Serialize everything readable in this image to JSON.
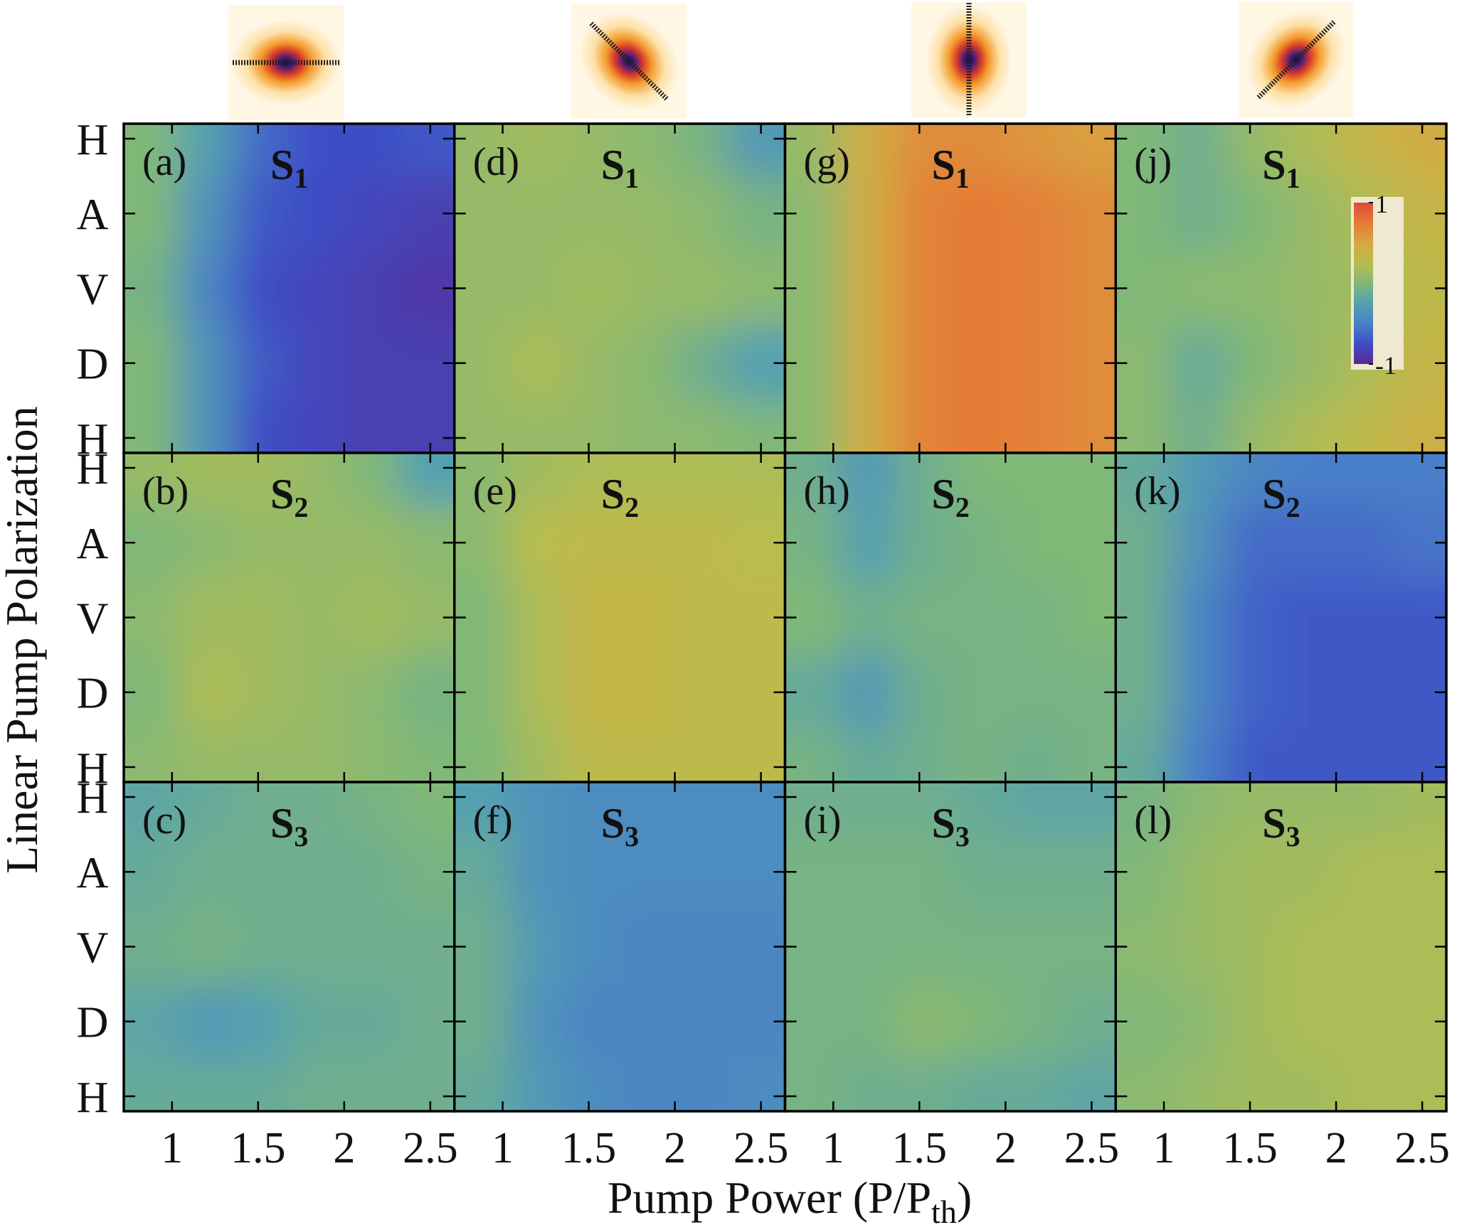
{
  "figure": {
    "ylabel": "Linear Pump Polarization",
    "xlabel": {
      "main": "Pump Power (P/P",
      "sub": "th",
      "end": ")"
    },
    "colorbar": {
      "clim": [
        -1,
        1
      ],
      "ticks": [
        1,
        -1
      ],
      "colors": [
        "#5a2a92",
        "#3e4ec6",
        "#4a7fc8",
        "#55a0b0",
        "#80b878",
        "#b8bd4e",
        "#d6a842",
        "#e57a36",
        "#de4a3a"
      ]
    }
  },
  "chart_data": [
    {
      "type": "heatmap",
      "panel_label": "(a)",
      "title": {
        "symbol": "S",
        "index": "1"
      },
      "x": [
        0.88,
        1.2,
        1.52,
        1.84,
        2.16,
        2.48
      ],
      "y": [
        0,
        1,
        2,
        3,
        4
      ],
      "z": [
        [
          0.0,
          -0.35,
          -0.75,
          -0.8,
          -0.85,
          -0.85
        ],
        [
          0.0,
          -0.35,
          -0.7,
          -0.8,
          -0.85,
          -0.85
        ],
        [
          -0.05,
          -0.45,
          -0.75,
          -0.8,
          -0.85,
          -0.9
        ],
        [
          0.0,
          -0.35,
          -0.7,
          -0.75,
          -0.8,
          -0.85
        ],
        [
          0.0,
          -0.25,
          -0.6,
          -0.75,
          -0.75,
          -0.7
        ]
      ],
      "xlim": [
        0.72,
        2.64
      ],
      "xticks": [
        1,
        1.5,
        2,
        2.5
      ],
      "ylim": [
        -0.2,
        4.2
      ],
      "yticks": [
        {
          "value": 0,
          "label": "H"
        },
        {
          "value": 1,
          "label": "D"
        },
        {
          "value": 2,
          "label": "V"
        },
        {
          "value": 3,
          "label": "A"
        },
        {
          "value": 4,
          "label": "H"
        }
      ]
    },
    {
      "type": "heatmap",
      "panel_label": "(b)",
      "title": {
        "symbol": "S",
        "index": "2"
      },
      "x": [
        0.88,
        1.2,
        1.52,
        1.84,
        2.16,
        2.48
      ],
      "y": [
        0,
        1,
        2,
        3,
        4
      ],
      "z": [
        [
          0.05,
          0.1,
          0.1,
          0.1,
          0.05,
          0.0
        ],
        [
          0.0,
          0.2,
          0.15,
          0.1,
          0.05,
          -0.05
        ],
        [
          0.05,
          0.15,
          0.15,
          0.1,
          0.15,
          0.1
        ],
        [
          0.0,
          0.05,
          0.1,
          0.1,
          0.1,
          0.05
        ],
        [
          0.1,
          0.15,
          0.15,
          0.1,
          0.0,
          -0.25
        ]
      ],
      "xlim": [
        0.72,
        2.64
      ],
      "xticks": [
        1,
        1.5,
        2,
        2.5
      ],
      "ylim": [
        -0.2,
        4.2
      ],
      "yticks": [
        {
          "value": 0,
          "label": "H"
        },
        {
          "value": 1,
          "label": "D"
        },
        {
          "value": 2,
          "label": "V"
        },
        {
          "value": 3,
          "label": "A"
        },
        {
          "value": 4,
          "label": "H"
        }
      ]
    },
    {
      "type": "heatmap",
      "panel_label": "(c)",
      "title": {
        "symbol": "S",
        "index": "3"
      },
      "x": [
        0.88,
        1.2,
        1.52,
        1.84,
        2.16,
        2.48
      ],
      "y": [
        0,
        1,
        2,
        3,
        4
      ],
      "z": [
        [
          -0.15,
          -0.15,
          -0.15,
          -0.1,
          -0.1,
          -0.1
        ],
        [
          -0.2,
          -0.3,
          -0.25,
          -0.15,
          -0.15,
          -0.1
        ],
        [
          -0.1,
          -0.05,
          -0.1,
          -0.1,
          -0.1,
          -0.1
        ],
        [
          -0.15,
          -0.1,
          -0.1,
          -0.1,
          -0.1,
          -0.05
        ],
        [
          -0.2,
          -0.15,
          -0.1,
          -0.1,
          -0.05,
          0.0
        ]
      ],
      "xlim": [
        0.72,
        2.64
      ],
      "xticks": [
        1,
        1.5,
        2,
        2.5
      ],
      "ylim": [
        -0.2,
        4.2
      ],
      "yticks": [
        {
          "value": 0,
          "label": "H"
        },
        {
          "value": 1,
          "label": "D"
        },
        {
          "value": 2,
          "label": "V"
        },
        {
          "value": 3,
          "label": "A"
        },
        {
          "value": 4,
          "label": "H"
        }
      ]
    },
    {
      "type": "heatmap",
      "panel_label": "(d)",
      "title": {
        "symbol": "S",
        "index": "1"
      },
      "x": [
        0.88,
        1.2,
        1.52,
        1.84,
        2.16,
        2.48
      ],
      "y": [
        0,
        1,
        2,
        3,
        4
      ],
      "z": [
        [
          0.1,
          0.1,
          0.1,
          0.05,
          0.05,
          0.0
        ],
        [
          0.1,
          0.2,
          0.1,
          0.05,
          -0.1,
          -0.25
        ],
        [
          0.1,
          0.1,
          0.15,
          0.1,
          0.1,
          0.05
        ],
        [
          0.1,
          0.1,
          0.1,
          0.1,
          0.05,
          -0.05
        ],
        [
          0.1,
          0.15,
          0.1,
          0.05,
          -0.05,
          -0.3
        ]
      ],
      "xlim": [
        0.72,
        2.64
      ],
      "xticks": [
        1,
        1.5,
        2,
        2.5
      ],
      "ylim": [
        -0.2,
        4.2
      ],
      "yticks": [
        {
          "value": 0,
          "label": "H"
        },
        {
          "value": 1,
          "label": "D"
        },
        {
          "value": 2,
          "label": "V"
        },
        {
          "value": 3,
          "label": "A"
        },
        {
          "value": 4,
          "label": "H"
        }
      ]
    },
    {
      "type": "heatmap",
      "panel_label": "(e)",
      "title": {
        "symbol": "S",
        "index": "2"
      },
      "x": [
        0.88,
        1.2,
        1.52,
        1.84,
        2.16,
        2.48
      ],
      "y": [
        0,
        1,
        2,
        3,
        4
      ],
      "z": [
        [
          0.0,
          0.15,
          0.3,
          0.3,
          0.3,
          0.3
        ],
        [
          0.0,
          0.2,
          0.35,
          0.35,
          0.3,
          0.3
        ],
        [
          0.0,
          0.2,
          0.35,
          0.35,
          0.3,
          0.3
        ],
        [
          0.05,
          0.25,
          0.3,
          0.3,
          0.3,
          0.25
        ],
        [
          0.05,
          0.15,
          0.2,
          0.2,
          0.2,
          0.2
        ]
      ],
      "xlim": [
        0.72,
        2.64
      ],
      "xticks": [
        1,
        1.5,
        2,
        2.5
      ],
      "ylim": [
        -0.2,
        4.2
      ],
      "yticks": [
        {
          "value": 0,
          "label": "H"
        },
        {
          "value": 1,
          "label": "D"
        },
        {
          "value": 2,
          "label": "V"
        },
        {
          "value": 3,
          "label": "A"
        },
        {
          "value": 4,
          "label": "H"
        }
      ]
    },
    {
      "type": "heatmap",
      "panel_label": "(f)",
      "title": {
        "symbol": "S",
        "index": "3"
      },
      "x": [
        0.88,
        1.2,
        1.52,
        1.84,
        2.16,
        2.48
      ],
      "y": [
        0,
        1,
        2,
        3,
        4
      ],
      "z": [
        [
          -0.15,
          -0.3,
          -0.4,
          -0.45,
          -0.45,
          -0.4
        ],
        [
          -0.1,
          -0.35,
          -0.45,
          -0.45,
          -0.45,
          -0.45
        ],
        [
          -0.1,
          -0.3,
          -0.4,
          -0.45,
          -0.45,
          -0.45
        ],
        [
          -0.15,
          -0.35,
          -0.4,
          -0.4,
          -0.4,
          -0.4
        ],
        [
          -0.25,
          -0.35,
          -0.4,
          -0.4,
          -0.4,
          -0.4
        ]
      ],
      "xlim": [
        0.72,
        2.64
      ],
      "xticks": [
        1,
        1.5,
        2,
        2.5
      ],
      "ylim": [
        -0.2,
        4.2
      ],
      "yticks": [
        {
          "value": 0,
          "label": "H"
        },
        {
          "value": 1,
          "label": "D"
        },
        {
          "value": 2,
          "label": "V"
        },
        {
          "value": 3,
          "label": "A"
        },
        {
          "value": 4,
          "label": "H"
        }
      ]
    },
    {
      "type": "heatmap",
      "panel_label": "(g)",
      "title": {
        "symbol": "S",
        "index": "1"
      },
      "x": [
        0.88,
        1.2,
        1.52,
        1.84,
        2.16,
        2.48
      ],
      "y": [
        0,
        1,
        2,
        3,
        4
      ],
      "z": [
        [
          0.05,
          0.45,
          0.7,
          0.75,
          0.72,
          0.65
        ],
        [
          0.05,
          0.45,
          0.7,
          0.75,
          0.72,
          0.65
        ],
        [
          0.05,
          0.45,
          0.7,
          0.75,
          0.72,
          0.65
        ],
        [
          0.05,
          0.45,
          0.7,
          0.75,
          0.72,
          0.65
        ],
        [
          0.1,
          0.45,
          0.65,
          0.65,
          0.6,
          0.55
        ]
      ],
      "xlim": [
        0.72,
        2.64
      ],
      "xticks": [
        1,
        1.5,
        2,
        2.5
      ],
      "ylim": [
        -0.2,
        4.2
      ],
      "yticks": [
        {
          "value": 0,
          "label": "H"
        },
        {
          "value": 1,
          "label": "D"
        },
        {
          "value": 2,
          "label": "V"
        },
        {
          "value": 3,
          "label": "A"
        },
        {
          "value": 4,
          "label": "H"
        }
      ]
    },
    {
      "type": "heatmap",
      "panel_label": "(h)",
      "title": {
        "symbol": "S",
        "index": "2"
      },
      "x": [
        0.88,
        1.2,
        1.52,
        1.84,
        2.16,
        2.48
      ],
      "y": [
        0,
        1,
        2,
        3,
        4
      ],
      "z": [
        [
          -0.05,
          -0.15,
          -0.1,
          -0.05,
          -0.1,
          -0.05
        ],
        [
          -0.15,
          -0.3,
          -0.1,
          -0.05,
          -0.05,
          -0.05
        ],
        [
          0.0,
          -0.1,
          -0.05,
          -0.05,
          -0.05,
          0.0
        ],
        [
          -0.05,
          -0.25,
          -0.1,
          -0.05,
          0.0,
          0.0
        ],
        [
          -0.1,
          -0.3,
          -0.1,
          0.0,
          0.0,
          0.0
        ]
      ],
      "xlim": [
        0.72,
        2.64
      ],
      "xticks": [
        1,
        1.5,
        2,
        2.5
      ],
      "ylim": [
        -0.2,
        4.2
      ],
      "yticks": [
        {
          "value": 0,
          "label": "H"
        },
        {
          "value": 1,
          "label": "D"
        },
        {
          "value": 2,
          "label": "V"
        },
        {
          "value": 3,
          "label": "A"
        },
        {
          "value": 4,
          "label": "H"
        }
      ]
    },
    {
      "type": "heatmap",
      "panel_label": "(i)",
      "title": {
        "symbol": "S",
        "index": "3"
      },
      "x": [
        0.88,
        1.2,
        1.52,
        1.84,
        2.16,
        2.48
      ],
      "y": [
        0,
        1,
        2,
        3,
        4
      ],
      "z": [
        [
          -0.05,
          -0.1,
          -0.1,
          -0.15,
          -0.15,
          -0.2
        ],
        [
          -0.05,
          -0.05,
          0.05,
          0.0,
          -0.05,
          -0.1
        ],
        [
          -0.05,
          -0.05,
          -0.05,
          -0.05,
          -0.05,
          -0.05
        ],
        [
          -0.05,
          -0.05,
          -0.05,
          -0.1,
          -0.1,
          -0.1
        ],
        [
          -0.1,
          -0.1,
          -0.1,
          -0.15,
          -0.2,
          -0.2
        ]
      ],
      "xlim": [
        0.72,
        2.64
      ],
      "xticks": [
        1,
        1.5,
        2,
        2.5
      ],
      "ylim": [
        -0.2,
        4.2
      ],
      "yticks": [
        {
          "value": 0,
          "label": "H"
        },
        {
          "value": 1,
          "label": "D"
        },
        {
          "value": 2,
          "label": "V"
        },
        {
          "value": 3,
          "label": "A"
        },
        {
          "value": 4,
          "label": "H"
        }
      ]
    },
    {
      "type": "heatmap",
      "panel_label": "(j)",
      "title": {
        "symbol": "S",
        "index": "1"
      },
      "x": [
        0.88,
        1.2,
        1.52,
        1.84,
        2.16,
        2.48
      ],
      "y": [
        0,
        1,
        2,
        3,
        4
      ],
      "z": [
        [
          0.05,
          -0.1,
          0.1,
          0.2,
          0.3,
          0.4
        ],
        [
          0.05,
          -0.15,
          0.0,
          0.1,
          0.2,
          0.35
        ],
        [
          0.0,
          0.05,
          0.05,
          0.1,
          0.15,
          0.3
        ],
        [
          0.0,
          -0.1,
          0.0,
          0.1,
          0.2,
          0.35
        ],
        [
          0.0,
          -0.1,
          0.1,
          0.2,
          0.35,
          0.45
        ]
      ],
      "xlim": [
        0.72,
        2.64
      ],
      "xticks": [
        1,
        1.5,
        2,
        2.5
      ],
      "ylim": [
        -0.2,
        4.2
      ],
      "yticks": [
        {
          "value": 0,
          "label": "H"
        },
        {
          "value": 1,
          "label": "D"
        },
        {
          "value": 2,
          "label": "V"
        },
        {
          "value": 3,
          "label": "A"
        },
        {
          "value": 4,
          "label": "H"
        }
      ]
    },
    {
      "type": "heatmap",
      "panel_label": "(k)",
      "title": {
        "symbol": "S",
        "index": "2"
      },
      "x": [
        0.88,
        1.2,
        1.52,
        1.84,
        2.16,
        2.48
      ],
      "y": [
        0,
        1,
        2,
        3,
        4
      ],
      "z": [
        [
          -0.15,
          -0.5,
          -0.7,
          -0.7,
          -0.7,
          -0.7
        ],
        [
          -0.1,
          -0.45,
          -0.65,
          -0.7,
          -0.7,
          -0.7
        ],
        [
          -0.1,
          -0.45,
          -0.65,
          -0.7,
          -0.7,
          -0.7
        ],
        [
          -0.1,
          -0.35,
          -0.6,
          -0.6,
          -0.6,
          -0.55
        ],
        [
          -0.15,
          -0.3,
          -0.45,
          -0.5,
          -0.5,
          -0.5
        ]
      ],
      "xlim": [
        0.72,
        2.64
      ],
      "xticks": [
        1,
        1.5,
        2,
        2.5
      ],
      "ylim": [
        -0.2,
        4.2
      ],
      "yticks": [
        {
          "value": 0,
          "label": "H"
        },
        {
          "value": 1,
          "label": "D"
        },
        {
          "value": 2,
          "label": "V"
        },
        {
          "value": 3,
          "label": "A"
        },
        {
          "value": 4,
          "label": "H"
        }
      ]
    },
    {
      "type": "heatmap",
      "panel_label": "(l)",
      "title": {
        "symbol": "S",
        "index": "3"
      },
      "x": [
        0.88,
        1.2,
        1.52,
        1.84,
        2.16,
        2.48
      ],
      "y": [
        0,
        1,
        2,
        3,
        4
      ],
      "z": [
        [
          0.05,
          0.1,
          0.15,
          0.15,
          0.2,
          0.2
        ],
        [
          0.0,
          0.05,
          0.15,
          0.2,
          0.2,
          0.2
        ],
        [
          0.05,
          0.1,
          0.15,
          0.2,
          0.2,
          0.2
        ],
        [
          0.0,
          0.1,
          0.15,
          0.15,
          0.2,
          0.2
        ],
        [
          -0.05,
          0.05,
          0.1,
          0.1,
          0.1,
          0.15
        ]
      ],
      "xlim": [
        0.72,
        2.64
      ],
      "xticks": [
        1,
        1.5,
        2,
        2.5
      ],
      "ylim": [
        -0.2,
        4.2
      ],
      "yticks": [
        {
          "value": 0,
          "label": "H"
        },
        {
          "value": 1,
          "label": "D"
        },
        {
          "value": 2,
          "label": "V"
        },
        {
          "value": 3,
          "label": "A"
        },
        {
          "value": 4,
          "label": "H"
        }
      ]
    }
  ]
}
